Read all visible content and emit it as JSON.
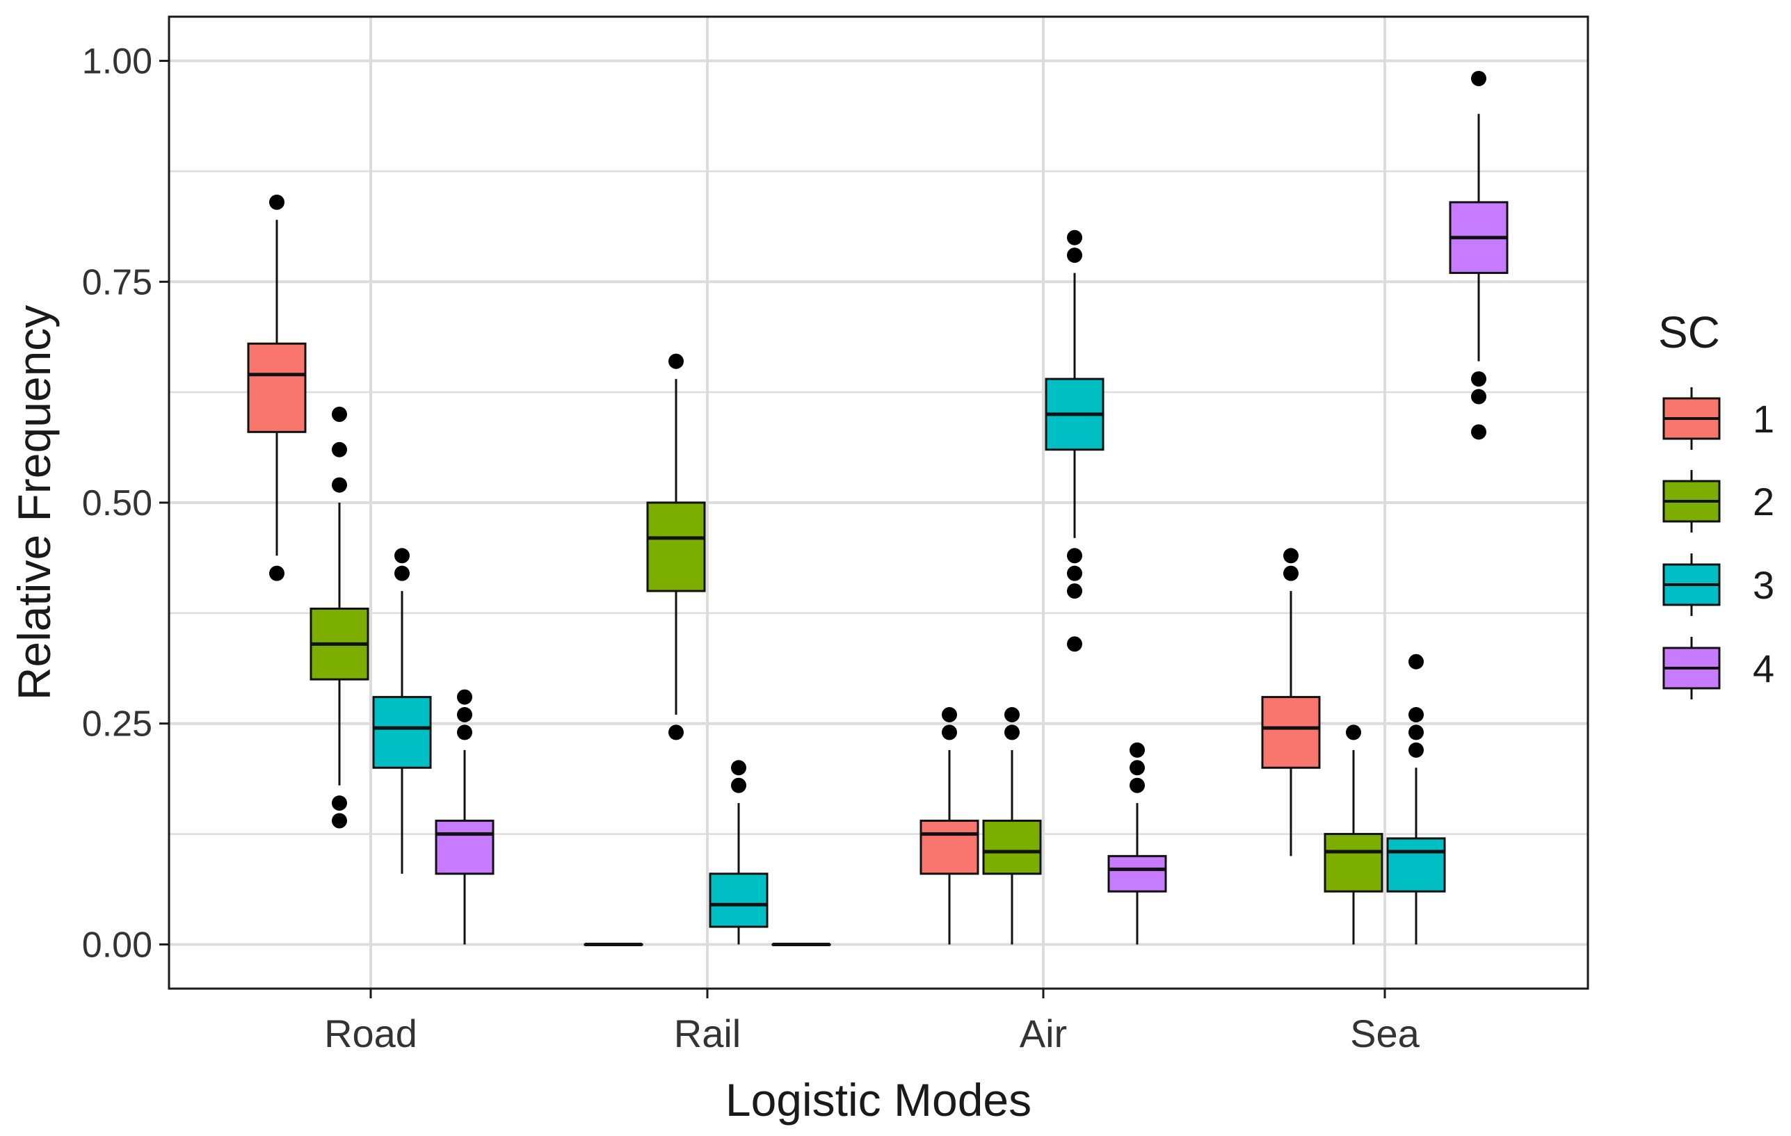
{
  "chart_data": {
    "type": "boxplot",
    "title": "",
    "xlabel": "Logistic Modes",
    "ylabel": "Relative Frequency",
    "categories": [
      "Road",
      "Rail",
      "Air",
      "Sea"
    ],
    "ylim": [
      -0.05,
      1.05
    ],
    "yticks": [
      0,
      0.25,
      0.5,
      0.75,
      1.0
    ],
    "ytick_labels": [
      "0.00",
      "0.25",
      "0.50",
      "0.75",
      "1.00"
    ],
    "grid": true,
    "legend": {
      "title": "SC",
      "position": "right",
      "entries": [
        "1",
        "2",
        "3",
        "4"
      ]
    },
    "colors": {
      "1": "#F8766D",
      "2": "#7CAE00",
      "3": "#00BFC4",
      "4": "#C77CFF",
      "grid": "#dcdcdc",
      "frame": "#1a1a1a"
    },
    "series": [
      {
        "name": "1",
        "boxes": [
          {
            "category": "Road",
            "lower_whisker": 0.44,
            "q1": 0.58,
            "median": 0.645,
            "q3": 0.68,
            "upper_whisker": 0.82,
            "outliers": [
              0.42,
              0.84
            ]
          },
          {
            "category": "Rail",
            "lower_whisker": 0.0,
            "q1": 0.0,
            "median": 0.0,
            "q3": 0.0,
            "upper_whisker": 0.0,
            "outliers": []
          },
          {
            "category": "Air",
            "lower_whisker": 0.0,
            "q1": 0.08,
            "median": 0.125,
            "q3": 0.14,
            "upper_whisker": 0.22,
            "outliers": [
              0.24,
              0.26
            ]
          },
          {
            "category": "Sea",
            "lower_whisker": 0.1,
            "q1": 0.2,
            "median": 0.245,
            "q3": 0.28,
            "upper_whisker": 0.4,
            "outliers": [
              0.42,
              0.44
            ]
          }
        ]
      },
      {
        "name": "2",
        "boxes": [
          {
            "category": "Road",
            "lower_whisker": 0.18,
            "q1": 0.3,
            "median": 0.34,
            "q3": 0.38,
            "upper_whisker": 0.5,
            "outliers": [
              0.14,
              0.16,
              0.52,
              0.56,
              0.6
            ]
          },
          {
            "category": "Rail",
            "lower_whisker": 0.26,
            "q1": 0.4,
            "median": 0.46,
            "q3": 0.5,
            "upper_whisker": 0.64,
            "outliers": [
              0.24,
              0.66
            ]
          },
          {
            "category": "Air",
            "lower_whisker": 0.0,
            "q1": 0.08,
            "median": 0.105,
            "q3": 0.14,
            "upper_whisker": 0.22,
            "outliers": [
              0.24,
              0.26
            ]
          },
          {
            "category": "Sea",
            "lower_whisker": 0.0,
            "q1": 0.06,
            "median": 0.105,
            "q3": 0.125,
            "upper_whisker": 0.22,
            "outliers": [
              0.24
            ]
          }
        ]
      },
      {
        "name": "3",
        "boxes": [
          {
            "category": "Road",
            "lower_whisker": 0.08,
            "q1": 0.2,
            "median": 0.245,
            "q3": 0.28,
            "upper_whisker": 0.4,
            "outliers": [
              0.42,
              0.44
            ]
          },
          {
            "category": "Rail",
            "lower_whisker": 0.0,
            "q1": 0.02,
            "median": 0.045,
            "q3": 0.08,
            "upper_whisker": 0.16,
            "outliers": [
              0.18,
              0.2
            ]
          },
          {
            "category": "Air",
            "lower_whisker": 0.46,
            "q1": 0.56,
            "median": 0.6,
            "q3": 0.64,
            "upper_whisker": 0.76,
            "outliers": [
              0.34,
              0.4,
              0.42,
              0.44,
              0.78,
              0.8
            ]
          },
          {
            "category": "Sea",
            "lower_whisker": 0.0,
            "q1": 0.06,
            "median": 0.105,
            "q3": 0.12,
            "upper_whisker": 0.2,
            "outliers": [
              0.22,
              0.24,
              0.26,
              0.32
            ]
          }
        ]
      },
      {
        "name": "4",
        "boxes": [
          {
            "category": "Road",
            "lower_whisker": 0.0,
            "q1": 0.08,
            "median": 0.125,
            "q3": 0.14,
            "upper_whisker": 0.22,
            "outliers": [
              0.24,
              0.26,
              0.28
            ]
          },
          {
            "category": "Rail",
            "lower_whisker": 0.0,
            "q1": 0.0,
            "median": 0.0,
            "q3": 0.0,
            "upper_whisker": 0.0,
            "outliers": []
          },
          {
            "category": "Air",
            "lower_whisker": 0.0,
            "q1": 0.06,
            "median": 0.085,
            "q3": 0.1,
            "upper_whisker": 0.16,
            "outliers": [
              0.18,
              0.2,
              0.22
            ]
          },
          {
            "category": "Sea",
            "lower_whisker": 0.66,
            "q1": 0.76,
            "median": 0.8,
            "q3": 0.84,
            "upper_whisker": 0.94,
            "outliers": [
              0.58,
              0.62,
              0.64,
              0.98
            ]
          }
        ]
      }
    ]
  }
}
